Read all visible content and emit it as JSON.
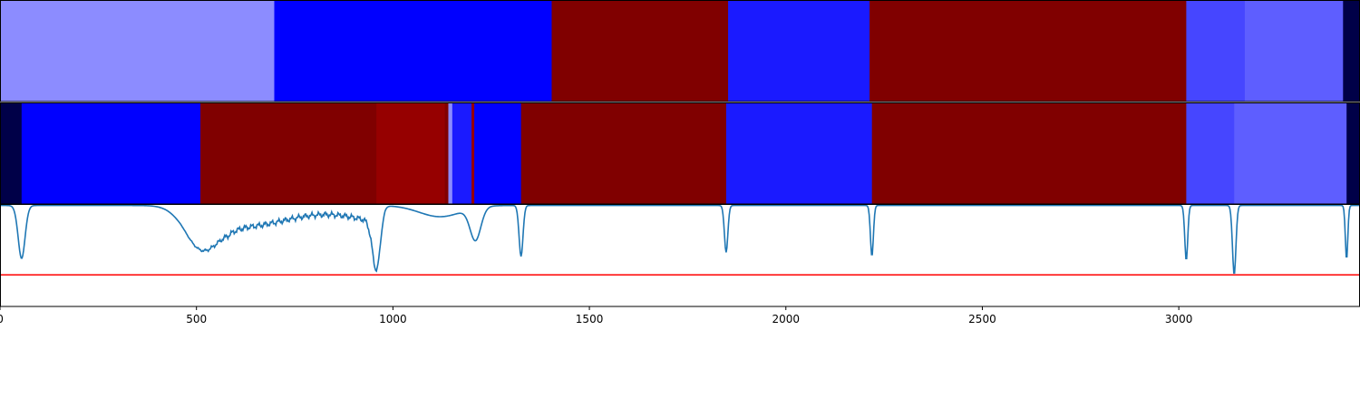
{
  "chart_data": [
    {
      "type": "heatmap",
      "panel": "top-band",
      "x_range": [
        0,
        3460
      ],
      "segments": [
        {
          "start": 0,
          "end": 698,
          "color": "#8c8cff"
        },
        {
          "start": 698,
          "end": 1404,
          "color": "#0000ff"
        },
        {
          "start": 1404,
          "end": 1853,
          "color": "#800000"
        },
        {
          "start": 1853,
          "end": 2213,
          "color": "#1a1aff"
        },
        {
          "start": 2213,
          "end": 3019,
          "color": "#800000"
        },
        {
          "start": 3019,
          "end": 3168,
          "color": "#4646ff"
        },
        {
          "start": 3168,
          "end": 3418,
          "color": "#5e5eff"
        },
        {
          "start": 3418,
          "end": 3460,
          "color": "#000048"
        }
      ]
    },
    {
      "type": "heatmap",
      "panel": "middle-band",
      "x_range": [
        0,
        3460
      ],
      "segments": [
        {
          "start": 0,
          "end": 55,
          "color": "#000048"
        },
        {
          "start": 55,
          "end": 510,
          "color": "#0000ff"
        },
        {
          "start": 510,
          "end": 958,
          "color": "#800000"
        },
        {
          "start": 958,
          "end": 1132,
          "color": "#960000"
        },
        {
          "start": 1132,
          "end": 1141,
          "color": "#800000"
        },
        {
          "start": 1141,
          "end": 1151,
          "color": "#8c8cff"
        },
        {
          "start": 1151,
          "end": 1200,
          "color": "#1a1aff"
        },
        {
          "start": 1200,
          "end": 1207,
          "color": "#960000"
        },
        {
          "start": 1207,
          "end": 1326,
          "color": "#0000ff"
        },
        {
          "start": 1326,
          "end": 1848,
          "color": "#800000"
        },
        {
          "start": 1848,
          "end": 2219,
          "color": "#1a1aff"
        },
        {
          "start": 2219,
          "end": 3019,
          "color": "#800000"
        },
        {
          "start": 3019,
          "end": 3141,
          "color": "#4646ff"
        },
        {
          "start": 3141,
          "end": 3427,
          "color": "#5e5eff"
        },
        {
          "start": 3427,
          "end": 3460,
          "color": "#000048"
        }
      ]
    },
    {
      "type": "line",
      "panel": "spectrum",
      "xlim": [
        0,
        3460
      ],
      "ylim": [
        0,
        1
      ],
      "x_ticks": [
        "0",
        "500",
        "1000",
        "1500",
        "2000",
        "2500",
        "3000"
      ],
      "x_tick_values": [
        0,
        500,
        1000,
        1500,
        2000,
        2500,
        3000
      ],
      "threshold": 0.31,
      "threshold_color": "#ff0000",
      "line_color": "#1f77b4",
      "baseline": 0.99,
      "dips": [
        {
          "center": 55,
          "depth": 0.47,
          "width": 14
        },
        {
          "center": 510,
          "depth": 0.62,
          "width": 60
        },
        {
          "center": 958,
          "depth": 0.45,
          "width": 16
        },
        {
          "center": 1120,
          "depth": 0.88,
          "width": 75
        },
        {
          "center": 1210,
          "depth": 0.67,
          "width": 22
        },
        {
          "center": 1326,
          "depth": 0.49,
          "width": 8
        },
        {
          "center": 1848,
          "depth": 0.53,
          "width": 7
        },
        {
          "center": 2219,
          "depth": 0.49,
          "width": 6
        },
        {
          "center": 3019,
          "depth": 0.45,
          "width": 6
        },
        {
          "center": 3141,
          "depth": 0.31,
          "width": 7
        },
        {
          "center": 3427,
          "depth": 0.46,
          "width": 5
        }
      ],
      "broad_band": {
        "start": 500,
        "end": 960,
        "level": 0.85,
        "noise": 0.03
      },
      "features": [
        {
          "start": 1190,
          "end": 1215,
          "level": 0.44
        }
      ]
    }
  ]
}
